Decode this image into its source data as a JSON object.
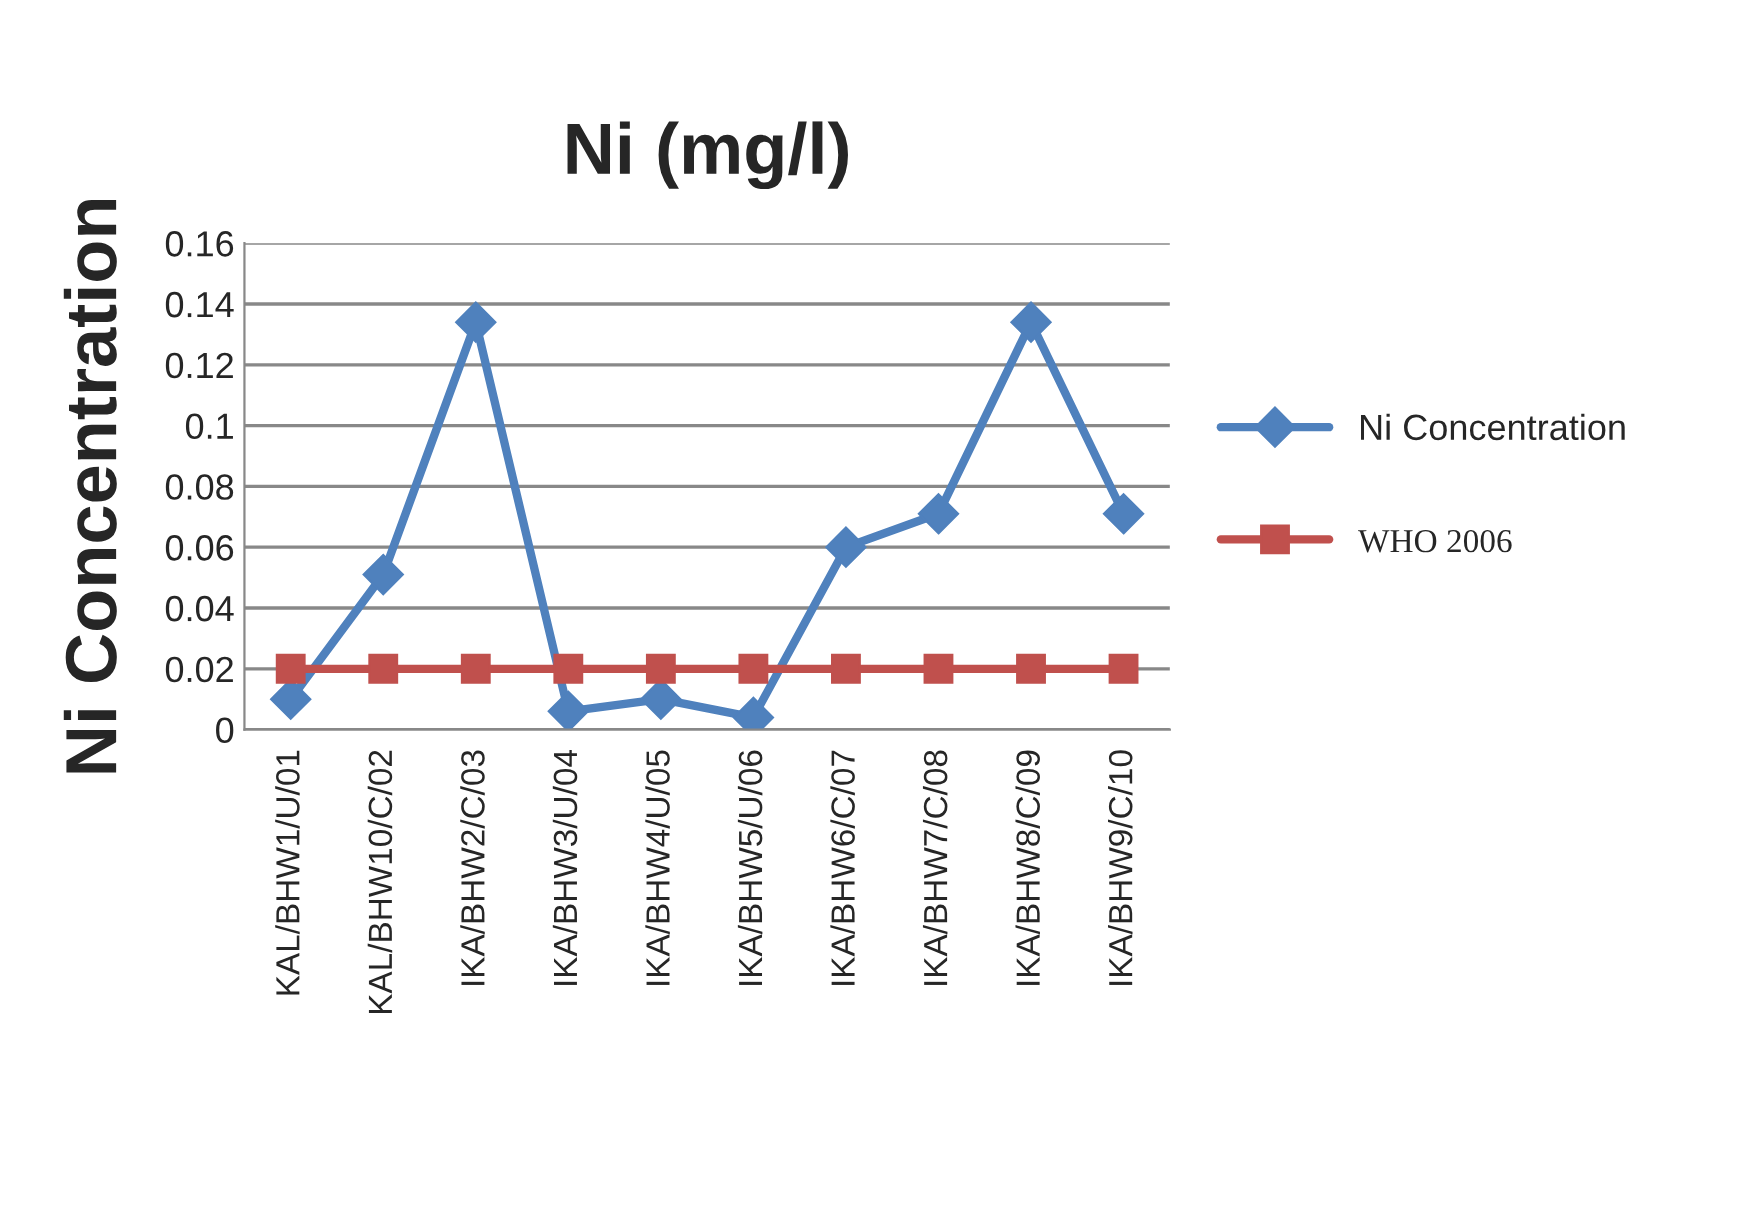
{
  "chart_data": {
    "type": "line",
    "title": "Ni (mg/l)",
    "ylabel": "Ni Concentration",
    "categories": [
      "KAL/BHW1/U/01",
      "KAL/BHW10/C/02",
      "IKA/BHW2/C/03",
      "IKA/BHW3/U/04",
      "IKA/BHW4/U/05",
      "IKA/BHW5/U/06",
      "IKA/BHW6/C/07",
      "IKA/BHW7/C/08",
      "IKA/BHW8/C/09",
      "IKA/BHW9/C/10"
    ],
    "series": [
      {
        "name": "Ni Concentration",
        "color": "#4f81bd",
        "marker": "diamond",
        "values": [
          0.01,
          0.051,
          0.134,
          0.006,
          0.01,
          0.004,
          0.06,
          0.071,
          0.134,
          0.071
        ]
      },
      {
        "name": "WHO 2006",
        "color": "#c0504d",
        "marker": "square",
        "values": [
          0.02,
          0.02,
          0.02,
          0.02,
          0.02,
          0.02,
          0.02,
          0.02,
          0.02,
          0.02
        ]
      }
    ],
    "ylim": [
      0,
      0.16
    ],
    "yticks": [
      0,
      0.02,
      0.04,
      0.06,
      0.08,
      0.1,
      0.12,
      0.14,
      0.16
    ],
    "grid": "y",
    "legend": "right"
  }
}
